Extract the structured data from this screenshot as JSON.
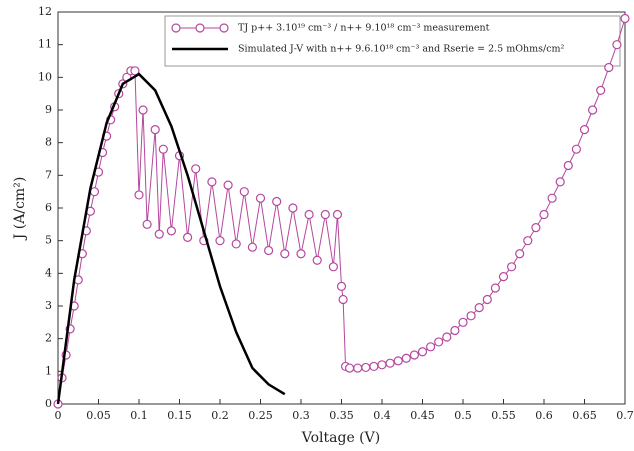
{
  "chart_data": {
    "type": "line",
    "xlabel": "Voltage (V)",
    "ylabel": "J (A/cm²)",
    "xlim": [
      0,
      0.7
    ],
    "ylim": [
      0,
      12
    ],
    "xticks": [
      0,
      0.05,
      0.1,
      0.15,
      0.2,
      0.25,
      0.3,
      0.35,
      0.4,
      0.45,
      0.5,
      0.55,
      0.6,
      0.65,
      0.7
    ],
    "yticks": [
      0,
      1,
      2,
      3,
      4,
      5,
      6,
      7,
      8,
      9,
      10,
      11,
      12
    ],
    "legend": "upper right",
    "series": [
      {
        "name": "TJ p++ 3.10¹⁹ cm⁻³ / n++ 9.10¹⁸ cm⁻³ measurement",
        "color": "#b5479f",
        "marker": "circle",
        "x": [
          0,
          0.005,
          0.01,
          0.015,
          0.02,
          0.025,
          0.03,
          0.035,
          0.04,
          0.045,
          0.05,
          0.055,
          0.06,
          0.065,
          0.07,
          0.075,
          0.08,
          0.085,
          0.09,
          0.095,
          0.1,
          0.105,
          0.11,
          0.12,
          0.125,
          0.13,
          0.14,
          0.15,
          0.16,
          0.17,
          0.18,
          0.19,
          0.2,
          0.21,
          0.22,
          0.23,
          0.24,
          0.25,
          0.26,
          0.27,
          0.28,
          0.29,
          0.3,
          0.31,
          0.32,
          0.33,
          0.34,
          0.345,
          0.35,
          0.352,
          0.355,
          0.36,
          0.37,
          0.38,
          0.39,
          0.4,
          0.41,
          0.42,
          0.43,
          0.44,
          0.45,
          0.46,
          0.47,
          0.48,
          0.49,
          0.5,
          0.51,
          0.52,
          0.53,
          0.54,
          0.55,
          0.56,
          0.57,
          0.58,
          0.59,
          0.6,
          0.61,
          0.62,
          0.63,
          0.64,
          0.65,
          0.66,
          0.67,
          0.68,
          0.69,
          0.7
        ],
        "values": [
          0,
          0.8,
          1.5,
          2.3,
          3.0,
          3.8,
          4.6,
          5.3,
          5.9,
          6.5,
          7.1,
          7.7,
          8.2,
          8.7,
          9.1,
          9.5,
          9.8,
          10.0,
          10.2,
          10.2,
          6.4,
          9.0,
          5.5,
          8.4,
          5.2,
          7.8,
          5.3,
          7.6,
          5.1,
          7.2,
          5.0,
          6.8,
          5.0,
          6.7,
          4.9,
          6.5,
          4.8,
          6.3,
          4.7,
          6.2,
          4.6,
          6.0,
          4.6,
          5.8,
          4.4,
          5.8,
          4.2,
          5.8,
          3.6,
          3.2,
          1.15,
          1.1,
          1.1,
          1.12,
          1.15,
          1.2,
          1.25,
          1.32,
          1.4,
          1.5,
          1.6,
          1.75,
          1.9,
          2.05,
          2.25,
          2.5,
          2.7,
          2.95,
          3.2,
          3.55,
          3.9,
          4.2,
          4.6,
          5.0,
          5.4,
          5.8,
          6.3,
          6.8,
          7.3,
          7.8,
          8.4,
          9.0,
          9.6,
          10.3,
          11.0,
          11.8
        ]
      },
      {
        "name": "Simulated J-V with n++ 9.6.10¹⁸ cm⁻³ and Rserie = 2.5 mOhms/cm²",
        "color": "#000000",
        "x": [
          0,
          0.02,
          0.04,
          0.06,
          0.08,
          0.1,
          0.12,
          0.14,
          0.16,
          0.18,
          0.2,
          0.22,
          0.24,
          0.26,
          0.28
        ],
        "values": [
          0,
          3.8,
          6.6,
          8.6,
          9.8,
          10.1,
          9.6,
          8.5,
          7.0,
          5.3,
          3.6,
          2.2,
          1.1,
          0.6,
          0.3
        ]
      }
    ]
  }
}
